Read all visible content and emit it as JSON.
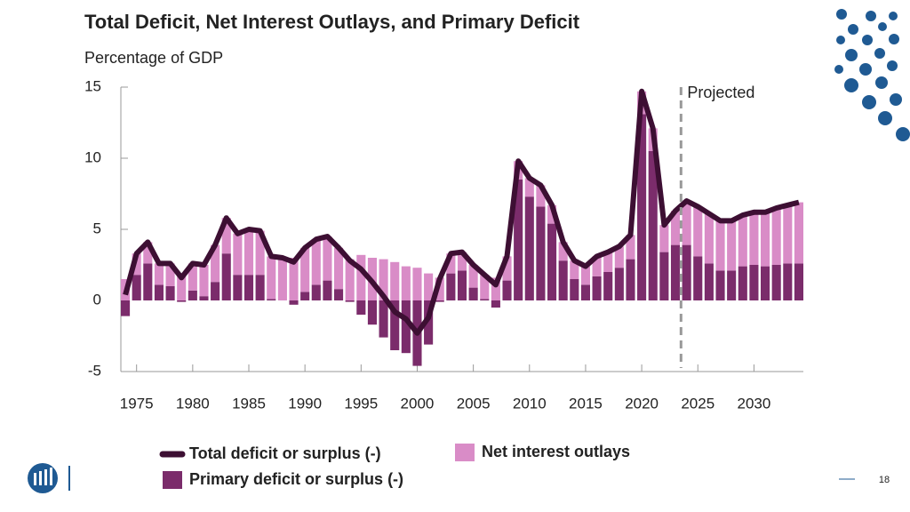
{
  "chart_data": {
    "type": "stacked_bar_line",
    "title": "Total Deficit, Net Interest Outlays, and Primary Deficit",
    "subtitle": "Percentage of GDP",
    "x": [
      1974,
      1975,
      1976,
      1977,
      1978,
      1979,
      1980,
      1981,
      1982,
      1983,
      1984,
      1985,
      1986,
      1987,
      1988,
      1989,
      1990,
      1991,
      1992,
      1993,
      1994,
      1995,
      1996,
      1997,
      1998,
      1999,
      2000,
      2001,
      2002,
      2003,
      2004,
      2005,
      2006,
      2007,
      2008,
      2009,
      2010,
      2011,
      2012,
      2013,
      2014,
      2015,
      2016,
      2017,
      2018,
      2019,
      2020,
      2021,
      2022,
      2023,
      2024,
      2025,
      2026,
      2027,
      2028,
      2029,
      2030,
      2031,
      2032,
      2033,
      2034
    ],
    "series": [
      {
        "name": "Total deficit or surplus (-)",
        "kind": "line",
        "color": "#3d0f33",
        "values": [
          0.4,
          3.3,
          4.1,
          2.6,
          2.6,
          1.6,
          2.6,
          2.5,
          3.9,
          5.8,
          4.7,
          5.0,
          4.9,
          3.1,
          3.0,
          2.7,
          3.7,
          4.3,
          4.5,
          3.7,
          2.8,
          2.2,
          1.3,
          0.3,
          -0.8,
          -1.3,
          -2.3,
          -1.2,
          1.5,
          3.3,
          3.4,
          2.5,
          1.8,
          1.1,
          3.1,
          9.8,
          8.6,
          8.1,
          6.7,
          4.1,
          2.8,
          2.4,
          3.1,
          3.4,
          3.8,
          4.6,
          14.7,
          12.1,
          5.3,
          6.3,
          7.0,
          6.6,
          6.1,
          5.6,
          5.6,
          6.0,
          6.2,
          6.2,
          6.5,
          6.7,
          6.9
        ]
      },
      {
        "name": "Net interest outlays",
        "kind": "bar",
        "color": "#d98cc7",
        "values": [
          1.5,
          1.5,
          1.5,
          1.5,
          1.6,
          1.7,
          1.9,
          2.2,
          2.6,
          2.5,
          2.9,
          3.2,
          3.1,
          3.0,
          3.0,
          3.0,
          3.1,
          3.2,
          3.1,
          2.9,
          2.9,
          3.2,
          3.0,
          2.9,
          2.7,
          2.4,
          2.3,
          1.9,
          1.6,
          1.4,
          1.3,
          1.6,
          1.7,
          1.6,
          1.7,
          1.3,
          1.3,
          1.5,
          1.3,
          1.3,
          1.3,
          1.3,
          1.4,
          1.4,
          1.5,
          1.7,
          1.6,
          1.6,
          1.9,
          2.4,
          3.1,
          3.5,
          3.5,
          3.5,
          3.5,
          3.6,
          3.7,
          3.8,
          4.0,
          4.1,
          4.3
        ]
      },
      {
        "name": "Primary deficit or surplus (-)",
        "kind": "bar",
        "color": "#7b2c6b",
        "values": [
          -1.1,
          1.8,
          2.6,
          1.1,
          1.0,
          -0.1,
          0.7,
          0.3,
          1.3,
          3.3,
          1.8,
          1.8,
          1.8,
          0.1,
          0.0,
          -0.3,
          0.6,
          1.1,
          1.4,
          0.8,
          -0.1,
          -1.0,
          -1.7,
          -2.6,
          -3.5,
          -3.7,
          -4.6,
          -3.1,
          -0.1,
          1.9,
          2.1,
          0.9,
          0.1,
          -0.5,
          1.4,
          8.5,
          7.3,
          6.6,
          5.4,
          2.8,
          1.5,
          1.1,
          1.7,
          2.0,
          2.3,
          2.9,
          13.1,
          10.5,
          3.4,
          3.9,
          3.9,
          3.1,
          2.6,
          2.1,
          2.1,
          2.4,
          2.5,
          2.4,
          2.5,
          2.6,
          2.6
        ]
      }
    ],
    "xlim": [
      1973.6,
      2034.4
    ],
    "xticks": [
      1975,
      1980,
      1985,
      1990,
      1995,
      2000,
      2005,
      2010,
      2015,
      2020,
      2025,
      2030
    ],
    "ylim": [
      -5,
      15
    ],
    "yticks": [
      -5,
      0,
      5,
      10,
      15
    ],
    "annotations": [
      {
        "text": "Projected",
        "x": 2023.5
      }
    ],
    "page_number": "18"
  }
}
